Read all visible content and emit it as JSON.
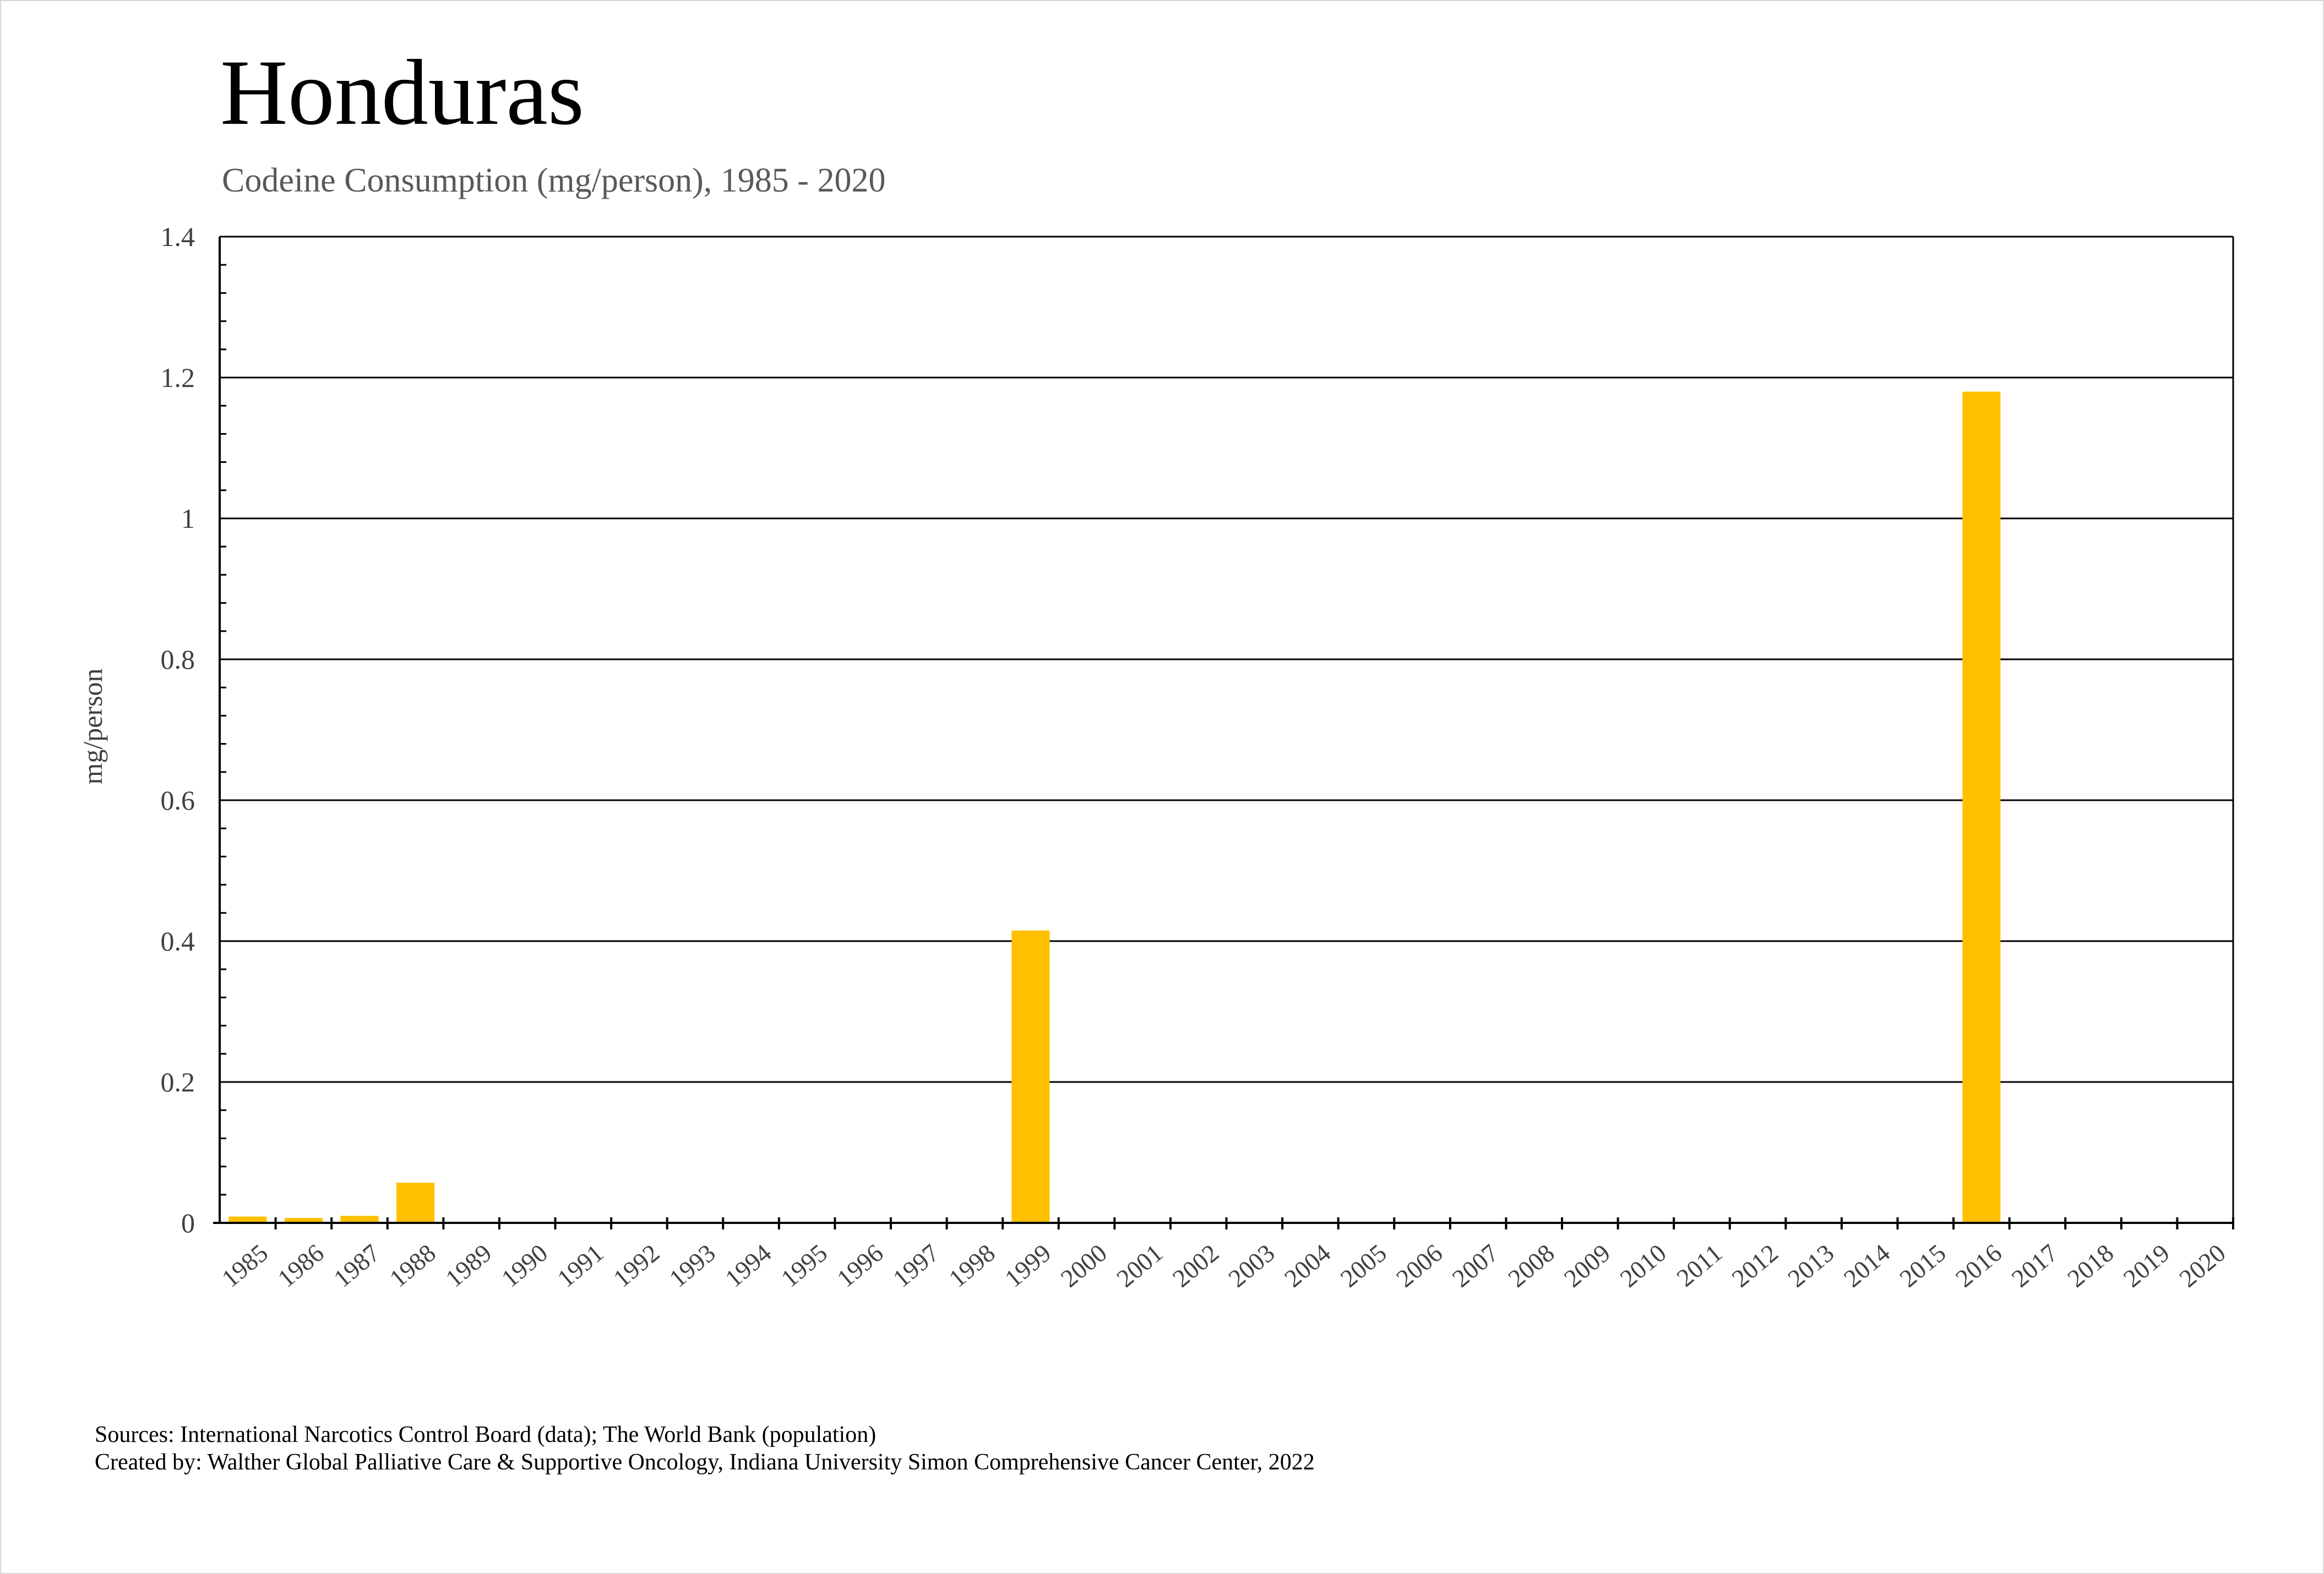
{
  "chart_data": {
    "type": "bar",
    "title": "Honduras",
    "subtitle": "Codeine Consumption (mg/person), 1985 - 2020",
    "xlabel": "",
    "ylabel": "mg/person",
    "ylim": [
      0,
      1.4
    ],
    "yticks": [
      "0",
      "0.2",
      "0.4",
      "0.6",
      "0.8",
      "1",
      "1.2",
      "1.4"
    ],
    "grid": true,
    "bar_color": "#FFC000",
    "categories": [
      "1985",
      "1986",
      "1987",
      "1988",
      "1989",
      "1990",
      "1991",
      "1992",
      "1993",
      "1994",
      "1995",
      "1996",
      "1997",
      "1998",
      "1999",
      "2000",
      "2001",
      "2002",
      "2003",
      "2004",
      "2005",
      "2006",
      "2007",
      "2008",
      "2009",
      "2010",
      "2011",
      "2012",
      "2013",
      "2014",
      "2015",
      "2016",
      "2017",
      "2018",
      "2019",
      "2020"
    ],
    "values": [
      0.009,
      0.007,
      0.01,
      0.057,
      0,
      0,
      0,
      0,
      0,
      0,
      0,
      0,
      0,
      0,
      0.415,
      0,
      0,
      0,
      0,
      0,
      0,
      0,
      0,
      0,
      0,
      0,
      0,
      0,
      0,
      0,
      0,
      1.18,
      0,
      0,
      0,
      0
    ]
  },
  "footer": {
    "sources": "Sources: International Narcotics Control Board (data); The World Bank (population)",
    "created_by": "Created by: Walther Global Palliative Care & Supportive Oncology, Indiana University Simon Comprehensive Cancer Center, 2022"
  }
}
